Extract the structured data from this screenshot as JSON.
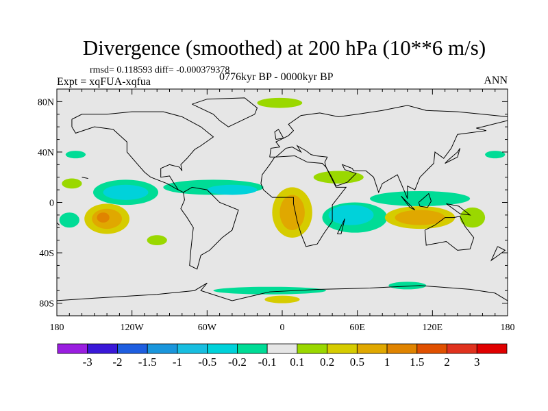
{
  "title": "Divergence (smoothed) at 200 hPa (10**6 m/s)",
  "stats": "rmsd= 0.118593 diff= -0.000379378",
  "experiment": "Expt = xqFUA-xqfua",
  "period": "0776kyr BP - 0000kyr BP",
  "season": "ANN",
  "map": {
    "lon_ticks": [
      "180",
      "120W",
      "60W",
      "0",
      "60E",
      "120E",
      "180"
    ],
    "lat_ticks": [
      "80N",
      "40N",
      "0",
      "40S",
      "80S"
    ],
    "background_color": "#E6E6E6",
    "anomaly_regions": [
      {
        "lon": -125,
        "lat": 8,
        "rlon": 26,
        "rlat": 10,
        "value": -0.2
      },
      {
        "lon": -125,
        "lat": 8,
        "rlon": 18,
        "rlat": 6,
        "value": -0.5
      },
      {
        "lon": -55,
        "lat": 12,
        "rlon": 40,
        "rlat": 6,
        "value": -0.2
      },
      {
        "lon": -40,
        "lat": 10,
        "rlon": 20,
        "rlat": 4,
        "value": -0.5
      },
      {
        "lon": -140,
        "lat": -13,
        "rlon": 18,
        "rlat": 12,
        "value": 0.2
      },
      {
        "lon": -140,
        "lat": -13,
        "rlon": 12,
        "rlat": 8,
        "value": 0.5
      },
      {
        "lon": -143,
        "lat": -12,
        "rlon": 5,
        "rlat": 4,
        "value": 1
      },
      {
        "lon": -170,
        "lat": -14,
        "rlon": 8,
        "rlat": 6,
        "value": -0.2
      },
      {
        "lon": -168,
        "lat": 15,
        "rlon": 8,
        "rlat": 4,
        "value": 0.1
      },
      {
        "lon": 8,
        "lat": -8,
        "rlon": 16,
        "rlat": 20,
        "value": 0.2
      },
      {
        "lon": 8,
        "lat": -8,
        "rlon": 10,
        "rlat": 14,
        "value": 0.5
      },
      {
        "lon": 58,
        "lat": -12,
        "rlon": 26,
        "rlat": 12,
        "value": -0.2
      },
      {
        "lon": 55,
        "lat": -10,
        "rlon": 18,
        "rlat": 8,
        "value": -0.5
      },
      {
        "lon": 110,
        "lat": 3,
        "rlon": 40,
        "rlat": 6,
        "value": -0.2
      },
      {
        "lon": 110,
        "lat": -12,
        "rlon": 28,
        "rlat": 9,
        "value": 0.2
      },
      {
        "lon": 110,
        "lat": -12,
        "rlon": 20,
        "rlat": 6,
        "value": 0.5
      },
      {
        "lon": 152,
        "lat": -12,
        "rlon": 10,
        "rlat": 8,
        "value": 0.1
      },
      {
        "lon": -2,
        "lat": 79,
        "rlon": 18,
        "rlat": 4,
        "value": 0.1
      },
      {
        "lon": 45,
        "lat": 20,
        "rlon": 20,
        "rlat": 5,
        "value": 0.1
      },
      {
        "lon": -100,
        "lat": -30,
        "rlon": 8,
        "rlat": 4,
        "value": 0.1
      },
      {
        "lon": -10,
        "lat": -70,
        "rlon": 45,
        "rlat": 3,
        "value": -0.2
      },
      {
        "lon": 0,
        "lat": -77,
        "rlon": 14,
        "rlat": 3,
        "value": 0.2
      },
      {
        "lon": 100,
        "lat": -66,
        "rlon": 15,
        "rlat": 3,
        "value": -0.2
      },
      {
        "lon": -165,
        "lat": 38,
        "rlon": 8,
        "rlat": 3,
        "value": -0.2
      },
      {
        "lon": 170,
        "lat": 38,
        "rlon": 8,
        "rlat": 3,
        "value": -0.2
      }
    ]
  },
  "colorbar": {
    "labels": [
      "-3",
      "-2",
      "-1.5",
      "-1",
      "-0.5",
      "-0.2",
      "-0.1",
      "0.1",
      "0.2",
      "0.5",
      "1",
      "1.5",
      "2",
      "3"
    ],
    "levels": [
      -3,
      -2,
      -1.5,
      -1,
      -0.5,
      -0.2,
      -0.1,
      0.1,
      0.2,
      0.5,
      1,
      1.5,
      2,
      3
    ],
    "colors": [
      "#9A1EE0",
      "#3A18D8",
      "#1E5EE0",
      "#1A96DC",
      "#18BEE0",
      "#00D2DA",
      "#00DC96",
      "#E6E6E6",
      "#9AD800",
      "#D6CC00",
      "#E0A800",
      "#E08400",
      "#E05000",
      "#E0321E",
      "#E00000"
    ]
  }
}
